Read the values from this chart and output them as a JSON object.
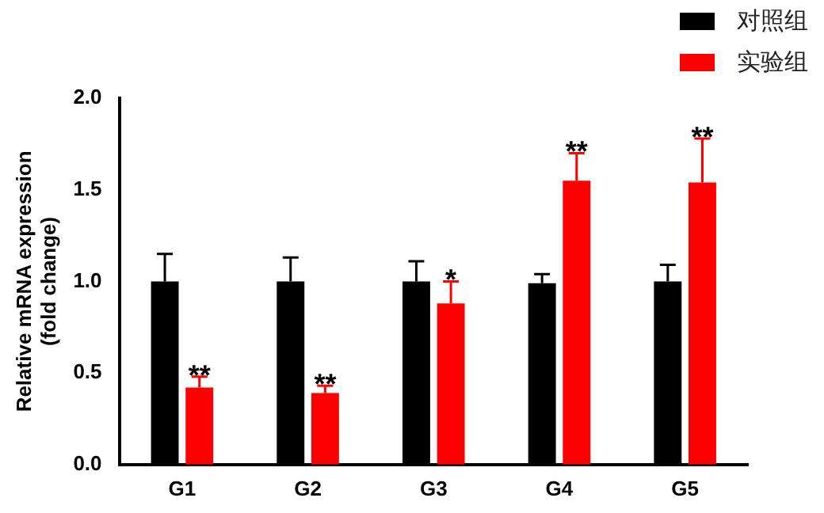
{
  "chart_data": {
    "type": "bar",
    "ylabel": "Relative mRNA expression\n(fold change)",
    "categories": [
      "G1",
      "G2",
      "G3",
      "G4",
      "G5"
    ],
    "series": [
      {
        "name": "对照组",
        "color": "#000000",
        "values": [
          1.0,
          1.0,
          1.0,
          0.99,
          1.0
        ],
        "errors": [
          [
            1.0,
            1.15
          ],
          [
            1.0,
            1.13
          ],
          [
            1.0,
            1.11
          ],
          [
            0.99,
            1.04
          ],
          [
            1.0,
            1.09
          ]
        ]
      },
      {
        "name": "实验组",
        "color": "#ff0000",
        "values": [
          0.42,
          0.39,
          0.88,
          1.55,
          1.54
        ],
        "errors": [
          [
            0.42,
            0.48
          ],
          [
            0.39,
            0.43
          ],
          [
            0.88,
            1.0
          ],
          [
            1.55,
            1.7
          ],
          [
            1.54,
            1.78
          ]
        ]
      }
    ],
    "ylim": [
      0,
      2
    ],
    "yticks": [
      {
        "value": 0,
        "label": "0.0"
      },
      {
        "value": 0.5,
        "label": "0.5"
      },
      {
        "value": 1,
        "label": "1.0"
      },
      {
        "value": 1.5,
        "label": "1.5"
      },
      {
        "value": 2,
        "label": "2.0"
      }
    ],
    "grid": false,
    "legend": "top right",
    "annotations": [
      {
        "text": "**",
        "x": "G1",
        "y": 0.42
      },
      {
        "text": "**",
        "x": "G2",
        "y": 0.39
      },
      {
        "text": "*",
        "x": "G3",
        "y": 0.88
      },
      {
        "text": "**",
        "x": "G4",
        "y": 1.55
      },
      {
        "text": "**",
        "x": "G5",
        "y": 1.54
      }
    ]
  }
}
